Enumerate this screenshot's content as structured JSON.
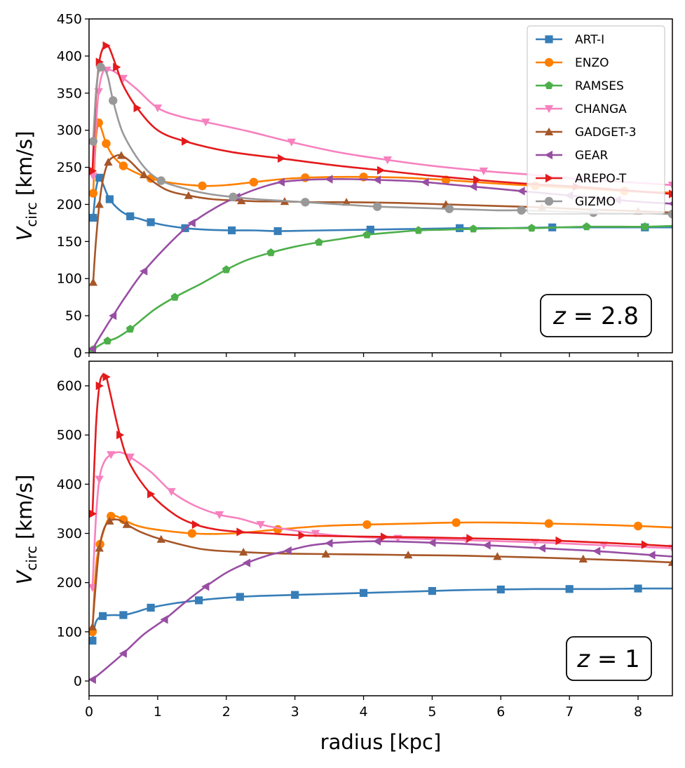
{
  "chart_data": [
    {
      "type": "line",
      "panel": "top",
      "annotation": {
        "var": "z",
        "eq": " = ",
        "value": "2.8"
      },
      "xlabel": "",
      "ylabel": {
        "main": "V",
        "sub": "circ",
        "unit": " [km/s]"
      },
      "xlim": [
        0,
        8.5
      ],
      "ylim": [
        0,
        450
      ],
      "yticks": [
        "0",
        "50",
        "100",
        "150",
        "200",
        "250",
        "300",
        "350",
        "400",
        "450"
      ],
      "legend": "top-right",
      "series": [
        {
          "name": "ART-I",
          "color": "#377eb8",
          "marker": "square",
          "x": [
            0.06,
            0.1,
            0.15,
            0.2,
            0.3,
            0.45,
            0.6,
            0.72,
            0.9,
            1.1,
            1.4,
            1.7,
            2.08,
            2.4,
            2.75,
            3.4,
            4.1,
            4.75,
            5.4,
            6.1,
            6.75,
            7.4,
            8.1,
            8.5
          ],
          "y": [
            182,
            220,
            236,
            228,
            207,
            192,
            184,
            181,
            176,
            172,
            168,
            166,
            165,
            165,
            164,
            165,
            166,
            167,
            168,
            168,
            169,
            169,
            169,
            169
          ]
        },
        {
          "name": "ENZO",
          "color": "#ff7f00",
          "marker": "circle",
          "x": [
            0.06,
            0.1,
            0.14,
            0.18,
            0.25,
            0.35,
            0.5,
            0.7,
            0.9,
            1.2,
            1.65,
            2.0,
            2.4,
            2.8,
            3.15,
            3.55,
            4.0,
            4.6,
            5.2,
            5.8,
            6.5,
            7.1,
            7.8,
            8.5
          ],
          "y": [
            215,
            288,
            310,
            302,
            282,
            265,
            252,
            242,
            235,
            229,
            225,
            226,
            230,
            234,
            236,
            237,
            237,
            236,
            233,
            229,
            225,
            222,
            218,
            216
          ]
        },
        {
          "name": "RAMSES",
          "color": "#4daf4a",
          "marker": "pentagon",
          "x": [
            0.05,
            0.15,
            0.27,
            0.4,
            0.6,
            0.95,
            1.25,
            1.65,
            2.0,
            2.3,
            2.65,
            3.0,
            3.35,
            3.7,
            4.05,
            4.4,
            4.8,
            5.2,
            5.6,
            6.05,
            6.45,
            6.85,
            7.25,
            7.7,
            8.1,
            8.5
          ],
          "y": [
            4,
            10,
            16,
            20,
            32,
            58,
            75,
            94,
            112,
            125,
            135,
            143,
            149,
            154,
            159,
            162,
            165,
            166,
            167,
            168,
            168,
            169,
            170,
            170,
            170,
            171
          ]
        },
        {
          "name": "CHANGA",
          "color": "#f781bf",
          "marker": "triangle-down",
          "x": [
            0.06,
            0.1,
            0.14,
            0.2,
            0.26,
            0.35,
            0.5,
            0.7,
            1.0,
            1.35,
            1.7,
            2.3,
            2.95,
            3.65,
            4.35,
            5.0,
            5.75,
            6.45,
            7.15,
            7.85,
            8.5
          ],
          "y": [
            238,
            305,
            352,
            378,
            381,
            380,
            370,
            355,
            330,
            318,
            311,
            299,
            284,
            270,
            260,
            252,
            245,
            240,
            234,
            230,
            226
          ]
        },
        {
          "name": "GADGET-3",
          "color": "#a65628",
          "marker": "triangle-up",
          "x": [
            0.06,
            0.1,
            0.15,
            0.2,
            0.28,
            0.38,
            0.47,
            0.6,
            0.8,
            1.12,
            1.45,
            1.8,
            2.22,
            2.5,
            2.85,
            3.25,
            3.75,
            4.5,
            5.2,
            5.9,
            6.6,
            7.3,
            8.0,
            8.5
          ],
          "y": [
            95,
            150,
            200,
            232,
            257,
            265,
            266,
            258,
            240,
            220,
            212,
            207,
            205,
            204,
            204,
            203,
            203,
            202,
            200,
            198,
            196,
            193,
            191,
            189
          ]
        },
        {
          "name": "GEAR",
          "color": "#984ea3",
          "marker": "triangle-left",
          "x": [
            0.05,
            0.2,
            0.35,
            0.54,
            0.8,
            1.2,
            1.5,
            1.85,
            2.15,
            2.48,
            2.8,
            3.15,
            3.5,
            3.85,
            4.2,
            4.55,
            4.9,
            5.25,
            5.6,
            5.95,
            6.3,
            6.65,
            7.0,
            7.35,
            7.7,
            8.1,
            8.5
          ],
          "y": [
            5,
            28,
            50,
            77,
            110,
            150,
            175,
            196,
            210,
            222,
            230,
            233,
            234,
            234,
            233,
            232,
            230,
            227,
            224,
            221,
            218,
            215,
            212,
            209,
            206,
            203,
            201
          ]
        },
        {
          "name": "AREPO-T",
          "color": "#e41a1c",
          "marker": "triangle-right",
          "x": [
            0.05,
            0.1,
            0.15,
            0.2,
            0.25,
            0.3,
            0.4,
            0.5,
            0.7,
            1.0,
            1.4,
            2.05,
            2.8,
            3.55,
            4.25,
            4.95,
            5.65,
            6.35,
            7.1,
            7.8,
            8.5
          ],
          "y": [
            245,
            345,
            392,
            410,
            414,
            410,
            385,
            360,
            330,
            300,
            285,
            271,
            262,
            253,
            246,
            239,
            233,
            228,
            224,
            219,
            214
          ]
        },
        {
          "name": "GIZMO",
          "color": "#999999",
          "marker": "circle",
          "x": [
            0.06,
            0.1,
            0.13,
            0.17,
            0.22,
            0.28,
            0.35,
            0.5,
            0.78,
            1.05,
            1.45,
            1.75,
            2.1,
            2.45,
            2.8,
            3.15,
            3.5,
            3.85,
            4.2,
            4.55,
            4.9,
            5.25,
            5.6,
            5.95,
            6.3,
            6.65,
            7.0,
            7.35,
            7.7,
            8.1,
            8.5
          ],
          "y": [
            285,
            350,
            375,
            385,
            384,
            370,
            340,
            295,
            253,
            232,
            220,
            214,
            210,
            207,
            205,
            203,
            201,
            199,
            197,
            196,
            195,
            194,
            193,
            192,
            192,
            191,
            190,
            189,
            188,
            188,
            187
          ]
        }
      ]
    },
    {
      "type": "line",
      "panel": "bottom",
      "annotation": {
        "var": "z",
        "eq": " = ",
        "value": "1"
      },
      "xlabel": "radius [kpc]",
      "ylabel": {
        "main": "V",
        "sub": "circ",
        "unit": " [km/s]"
      },
      "xlim": [
        0,
        8.5
      ],
      "ylim": [
        -30,
        650
      ],
      "yticks": [
        "0",
        "100",
        "200",
        "300",
        "400",
        "500",
        "600"
      ],
      "xticks": [
        "0",
        "1",
        "2",
        "3",
        "4",
        "5",
        "6",
        "7",
        "8"
      ],
      "series": [
        {
          "name": "ART-I",
          "color": "#377eb8",
          "marker": "square",
          "x": [
            0.05,
            0.1,
            0.2,
            0.35,
            0.5,
            0.68,
            0.9,
            1.25,
            1.6,
            1.9,
            2.2,
            2.5,
            3.0,
            3.5,
            4.0,
            4.5,
            5.0,
            5.5,
            6.0,
            6.5,
            7.0,
            7.5,
            8.0,
            8.5
          ],
          "y": [
            82,
            120,
            132,
            134,
            134,
            140,
            149,
            158,
            164,
            168,
            171,
            173,
            175,
            177,
            179,
            181,
            183,
            185,
            186,
            187,
            187,
            187,
            188,
            188
          ]
        },
        {
          "name": "ENZO",
          "color": "#ff7f00",
          "marker": "circle",
          "x": [
            0.05,
            0.1,
            0.16,
            0.25,
            0.32,
            0.4,
            0.5,
            0.8,
            1.5,
            2.1,
            2.75,
            3.4,
            4.05,
            4.7,
            5.35,
            6.0,
            6.7,
            7.35,
            8.0,
            8.5
          ],
          "y": [
            100,
            230,
            278,
            320,
            335,
            335,
            328,
            312,
            300,
            300,
            308,
            315,
            318,
            320,
            322,
            322,
            320,
            318,
            315,
            312
          ]
        },
        {
          "name": "CHANGA",
          "color": "#f781bf",
          "marker": "triangle-down",
          "x": [
            0.05,
            0.1,
            0.15,
            0.22,
            0.32,
            0.45,
            0.6,
            0.9,
            1.2,
            1.53,
            1.9,
            2.2,
            2.5,
            2.8,
            3.3,
            3.9,
            4.5,
            5.0,
            5.5,
            6.0,
            6.5,
            7.0,
            7.5,
            8.0,
            8.5
          ],
          "y": [
            190,
            330,
            410,
            445,
            460,
            465,
            455,
            425,
            385,
            357,
            338,
            330,
            318,
            310,
            300,
            293,
            290,
            288,
            286,
            284,
            282,
            279,
            276,
            273,
            270
          ]
        },
        {
          "name": "GADGET-3",
          "color": "#a65628",
          "marker": "triangle-up",
          "x": [
            0.05,
            0.1,
            0.15,
            0.22,
            0.3,
            0.42,
            0.55,
            0.75,
            1.05,
            1.65,
            2.25,
            2.85,
            3.45,
            4.1,
            4.65,
            5.3,
            5.95,
            6.55,
            7.2,
            7.85,
            8.5
          ],
          "y": [
            110,
            200,
            270,
            310,
            325,
            328,
            318,
            303,
            288,
            268,
            262,
            259,
            258,
            257,
            256,
            255,
            253,
            251,
            248,
            245,
            241
          ]
        },
        {
          "name": "GEAR",
          "color": "#984ea3",
          "marker": "triangle-left",
          "x": [
            0.05,
            0.2,
            0.5,
            0.8,
            1.1,
            1.4,
            1.7,
            2.0,
            2.3,
            2.6,
            2.9,
            3.2,
            3.5,
            3.85,
            4.2,
            4.6,
            5.0,
            5.4,
            5.8,
            6.2,
            6.6,
            7.0,
            7.4,
            7.8,
            8.2,
            8.5
          ],
          "y": [
            3,
            20,
            56,
            95,
            125,
            160,
            192,
            220,
            240,
            255,
            265,
            275,
            280,
            283,
            284,
            283,
            281,
            279,
            276,
            273,
            270,
            267,
            264,
            260,
            256,
            253
          ]
        },
        {
          "name": "AREPO-T",
          "color": "#e41a1c",
          "marker": "triangle-right",
          "x": [
            0.05,
            0.1,
            0.15,
            0.2,
            0.25,
            0.3,
            0.45,
            0.6,
            0.9,
            1.25,
            1.55,
            1.85,
            2.2,
            2.6,
            3.1,
            3.75,
            4.3,
            4.85,
            5.55,
            6.2,
            6.85,
            7.5,
            8.1,
            8.5
          ],
          "y": [
            340,
            515,
            600,
            622,
            618,
            590,
            500,
            440,
            380,
            338,
            318,
            308,
            303,
            300,
            296,
            294,
            293,
            292,
            290,
            288,
            285,
            281,
            277,
            274
          ]
        }
      ]
    }
  ]
}
